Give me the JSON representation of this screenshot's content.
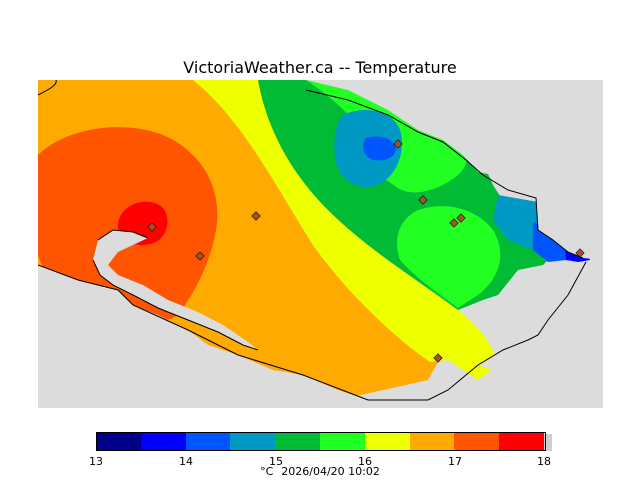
{
  "title": "VictoriaWeather.ca -- Temperature",
  "legend": {
    "ticks": [
      "13",
      "14",
      "15",
      "16",
      "17",
      "18"
    ],
    "colors": [
      "#00008b",
      "#0000ff",
      "#0055ff",
      "#0099c4",
      "#00bb33",
      "#22ff22",
      "#eeff00",
      "#ffaa00",
      "#ff5500",
      "#ff0000"
    ],
    "unit": "°C",
    "timestamp": "2026/04/20 10:02"
  },
  "map": {
    "land_color": "#dcdcdc",
    "station_color": "#a0522d"
  }
}
